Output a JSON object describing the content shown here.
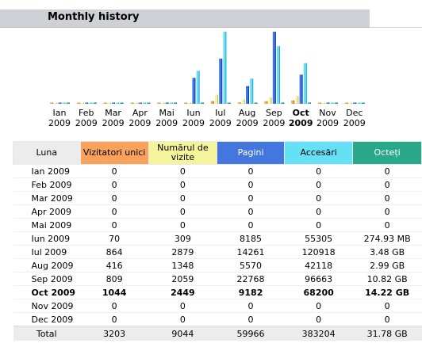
{
  "page": {
    "title": "Monthly history"
  },
  "colors": {
    "unique_visitors": "#f8a25c",
    "visits": "#f4f49c",
    "pages": "#4477dd",
    "hits": "#66e0f4",
    "bandwidth": "#2aa88a"
  },
  "chart_data": {
    "type": "bar",
    "title": "",
    "categories": [
      "Ian 2009",
      "Feb 2009",
      "Mar 2009",
      "Apr 2009",
      "Mai 2009",
      "Iun 2009",
      "Iul 2009",
      "Aug 2009",
      "Sep 2009",
      "Oct 2009",
      "Nov 2009",
      "Dec 2009"
    ],
    "category_months": [
      "Ian",
      "Feb",
      "Mar",
      "Apr",
      "Mai",
      "Iun",
      "Iul",
      "Aug",
      "Sep",
      "Oct",
      "Nov",
      "Dec"
    ],
    "category_years": [
      "2009",
      "2009",
      "2009",
      "2009",
      "2009",
      "2009",
      "2009",
      "2009",
      "2009",
      "2009",
      "2009",
      "2009"
    ],
    "highlight_index": 9,
    "series": [
      {
        "key": "unique_visitors",
        "values": [
          0,
          0,
          0,
          0,
          0,
          70,
          864,
          416,
          809,
          1044,
          0,
          0
        ]
      },
      {
        "key": "visits",
        "values": [
          0,
          0,
          0,
          0,
          0,
          309,
          2879,
          1348,
          2059,
          2449,
          0,
          0
        ]
      },
      {
        "key": "pages",
        "values": [
          0,
          0,
          0,
          0,
          0,
          8185,
          14261,
          5570,
          22768,
          9182,
          0,
          0
        ]
      },
      {
        "key": "hits",
        "values": [
          0,
          0,
          0,
          0,
          0,
          55305,
          120918,
          42118,
          96663,
          68200,
          0,
          0
        ]
      },
      {
        "key": "bandwidth_gb",
        "values": [
          0,
          0,
          0,
          0,
          0,
          0.27,
          3.48,
          2.99,
          10.82,
          14.22,
          0,
          0
        ]
      }
    ]
  },
  "table": {
    "headers": {
      "month": "Luna",
      "unique_visitors": "Vizitatori unici",
      "visits": "Numărul de vizite",
      "pages": "Pagini",
      "hits": "Accesări",
      "bandwidth": "Octeți"
    },
    "rows": [
      {
        "month": "Ian 2009",
        "unique": "0",
        "visits": "0",
        "pages": "0",
        "hits": "0",
        "bandwidth": "0"
      },
      {
        "month": "Feb 2009",
        "unique": "0",
        "visits": "0",
        "pages": "0",
        "hits": "0",
        "bandwidth": "0"
      },
      {
        "month": "Mar 2009",
        "unique": "0",
        "visits": "0",
        "pages": "0",
        "hits": "0",
        "bandwidth": "0"
      },
      {
        "month": "Apr 2009",
        "unique": "0",
        "visits": "0",
        "pages": "0",
        "hits": "0",
        "bandwidth": "0"
      },
      {
        "month": "Mai 2009",
        "unique": "0",
        "visits": "0",
        "pages": "0",
        "hits": "0",
        "bandwidth": "0"
      },
      {
        "month": "Iun 2009",
        "unique": "70",
        "visits": "309",
        "pages": "8185",
        "hits": "55305",
        "bandwidth": "274.93 MB"
      },
      {
        "month": "Iul 2009",
        "unique": "864",
        "visits": "2879",
        "pages": "14261",
        "hits": "120918",
        "bandwidth": "3.48 GB"
      },
      {
        "month": "Aug 2009",
        "unique": "416",
        "visits": "1348",
        "pages": "5570",
        "hits": "42118",
        "bandwidth": "2.99 GB"
      },
      {
        "month": "Sep 2009",
        "unique": "809",
        "visits": "2059",
        "pages": "22768",
        "hits": "96663",
        "bandwidth": "10.82 GB"
      },
      {
        "month": "Oct 2009",
        "unique": "1044",
        "visits": "2449",
        "pages": "9182",
        "hits": "68200",
        "bandwidth": "14.22 GB",
        "current": true
      },
      {
        "month": "Nov 2009",
        "unique": "0",
        "visits": "0",
        "pages": "0",
        "hits": "0",
        "bandwidth": "0"
      },
      {
        "month": "Dec 2009",
        "unique": "0",
        "visits": "0",
        "pages": "0",
        "hits": "0",
        "bandwidth": "0"
      }
    ],
    "total": {
      "month": "Total",
      "unique": "3203",
      "visits": "9044",
      "pages": "59966",
      "hits": "383204",
      "bandwidth": "31.78 GB"
    }
  }
}
